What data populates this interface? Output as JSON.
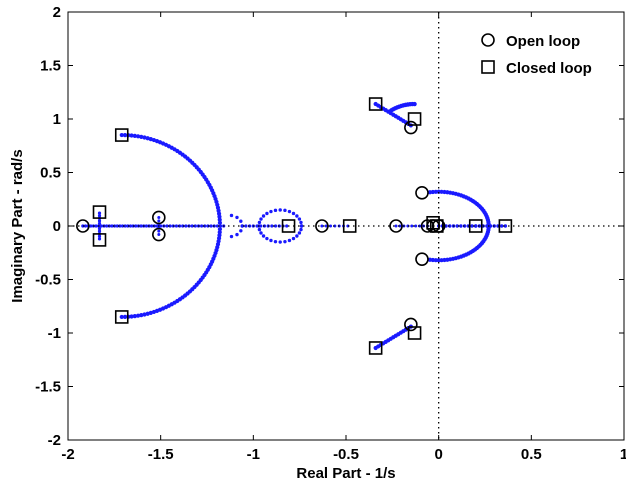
{
  "chart_data": {
    "type": "scatter",
    "title": "",
    "xlabel": "Real Part - 1/s",
    "ylabel": "Imaginary Part - rad/s",
    "xlim": [
      -2,
      1
    ],
    "ylim": [
      -2,
      2
    ],
    "xticks": [
      "-2",
      "-1.5",
      "-1",
      "-0.5",
      "0",
      "0.5",
      "1"
    ],
    "yticks": [
      "2",
      "1.5",
      "1",
      "0.5",
      "0",
      "-0.5",
      "-1",
      "-1.5",
      "-2"
    ],
    "grid": false,
    "legend_position": "top-right",
    "colors": {
      "locus": "#1a1aff",
      "marker": "#000000",
      "reference": "#000000"
    },
    "series": [
      {
        "name": "Open loop",
        "marker": "circle",
        "points": [
          [
            -1.92,
            0
          ],
          [
            -1.51,
            0.08
          ],
          [
            -1.51,
            -0.08
          ],
          [
            -0.63,
            0
          ],
          [
            -0.23,
            0
          ],
          [
            -0.15,
            0.92
          ],
          [
            -0.15,
            -0.92
          ],
          [
            -0.09,
            0.31
          ],
          [
            -0.09,
            -0.31
          ],
          [
            -0.06,
            0
          ],
          [
            -0.03,
            0
          ],
          [
            0,
            0
          ]
        ]
      },
      {
        "name": "Closed loop",
        "marker": "square",
        "points": [
          [
            -1.83,
            0.13
          ],
          [
            -1.83,
            -0.13
          ],
          [
            -1.71,
            0.85
          ],
          [
            -1.71,
            -0.85
          ],
          [
            -0.81,
            0
          ],
          [
            -0.48,
            0
          ],
          [
            -0.34,
            1.14
          ],
          [
            -0.34,
            -1.14
          ],
          [
            -0.13,
            1.0
          ],
          [
            -0.13,
            -1.0
          ],
          [
            -0.03,
            0.03
          ],
          [
            -0.01,
            0
          ],
          [
            0.2,
            0
          ],
          [
            0.36,
            0
          ]
        ]
      }
    ]
  }
}
